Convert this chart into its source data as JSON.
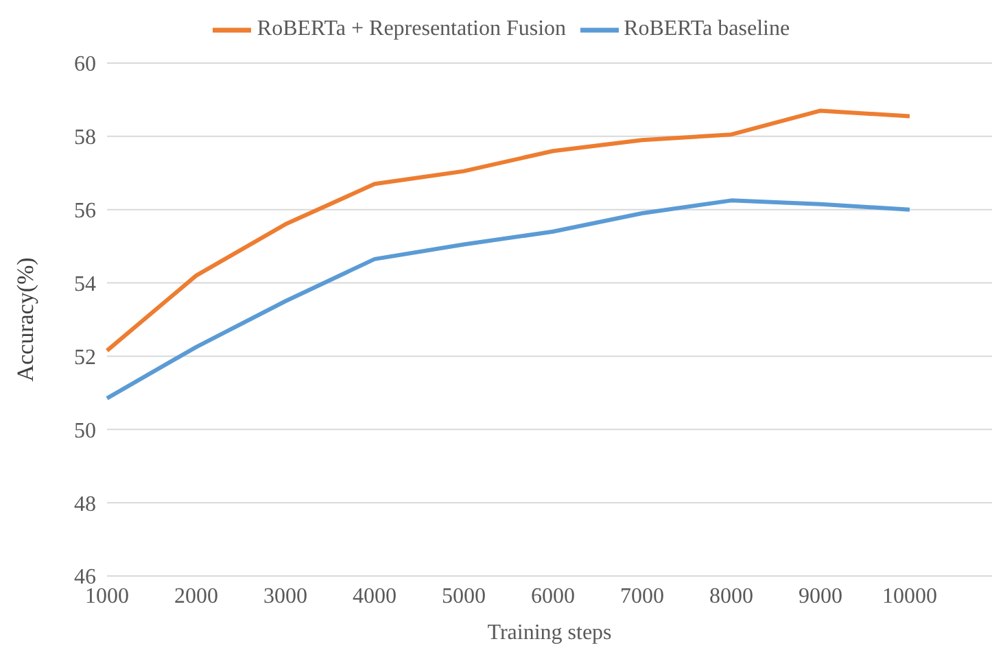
{
  "chart_data": {
    "type": "line",
    "xlabel": "Training steps",
    "ylabel": "Accuracy(%)",
    "categories": [
      "1000",
      "2000",
      "3000",
      "4000",
      "5000",
      "6000",
      "7000",
      "8000",
      "9000",
      "10000"
    ],
    "series": [
      {
        "name": "RoBERTa baseline",
        "color": "#5b9bd5",
        "values": [
          50.85,
          52.25,
          53.5,
          54.65,
          55.05,
          55.4,
          55.9,
          56.25,
          56.15,
          56.0
        ]
      },
      {
        "name": "RoBERTa + Representation Fusion",
        "color": "#ed7d31",
        "values": [
          52.15,
          54.2,
          55.6,
          56.7,
          57.05,
          57.6,
          57.9,
          58.05,
          58.7,
          58.55
        ]
      }
    ],
    "ylim": [
      46,
      60
    ],
    "yticks": [
      46,
      48,
      50,
      52,
      54,
      56,
      58,
      60
    ],
    "grid": "y",
    "legend": "top",
    "marker": "none",
    "line_style": "solid"
  }
}
